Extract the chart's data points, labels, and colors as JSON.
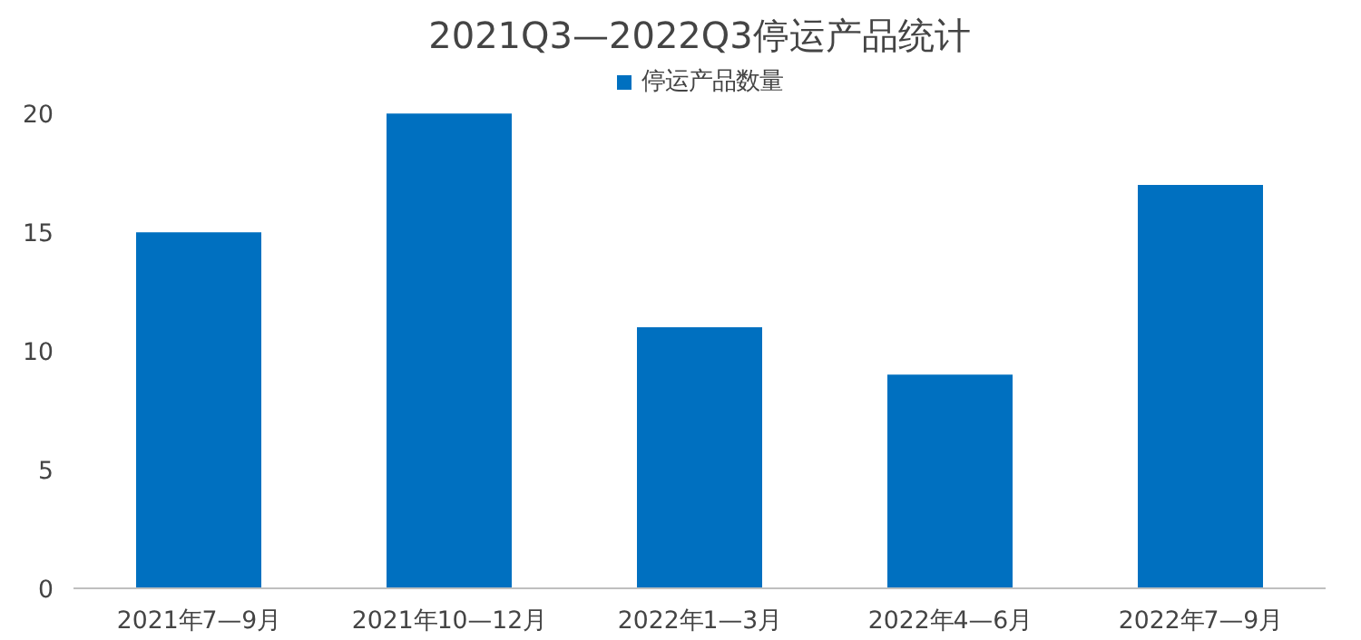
{
  "chart_data": {
    "type": "bar",
    "title": "2021Q3—2022Q3停运产品统计",
    "categories": [
      "2021年7—9月",
      "2021年10—12月",
      "2022年1—3月",
      "2022年4—6月",
      "2022年7—9月"
    ],
    "series": [
      {
        "name": "停运产品数量",
        "color": "#0070c0",
        "values": [
          15,
          20,
          11,
          9,
          17
        ]
      }
    ],
    "ylim": [
      0,
      22
    ],
    "yticks": [
      0,
      5,
      10,
      15,
      20
    ],
    "grid": false,
    "legend": "top"
  }
}
